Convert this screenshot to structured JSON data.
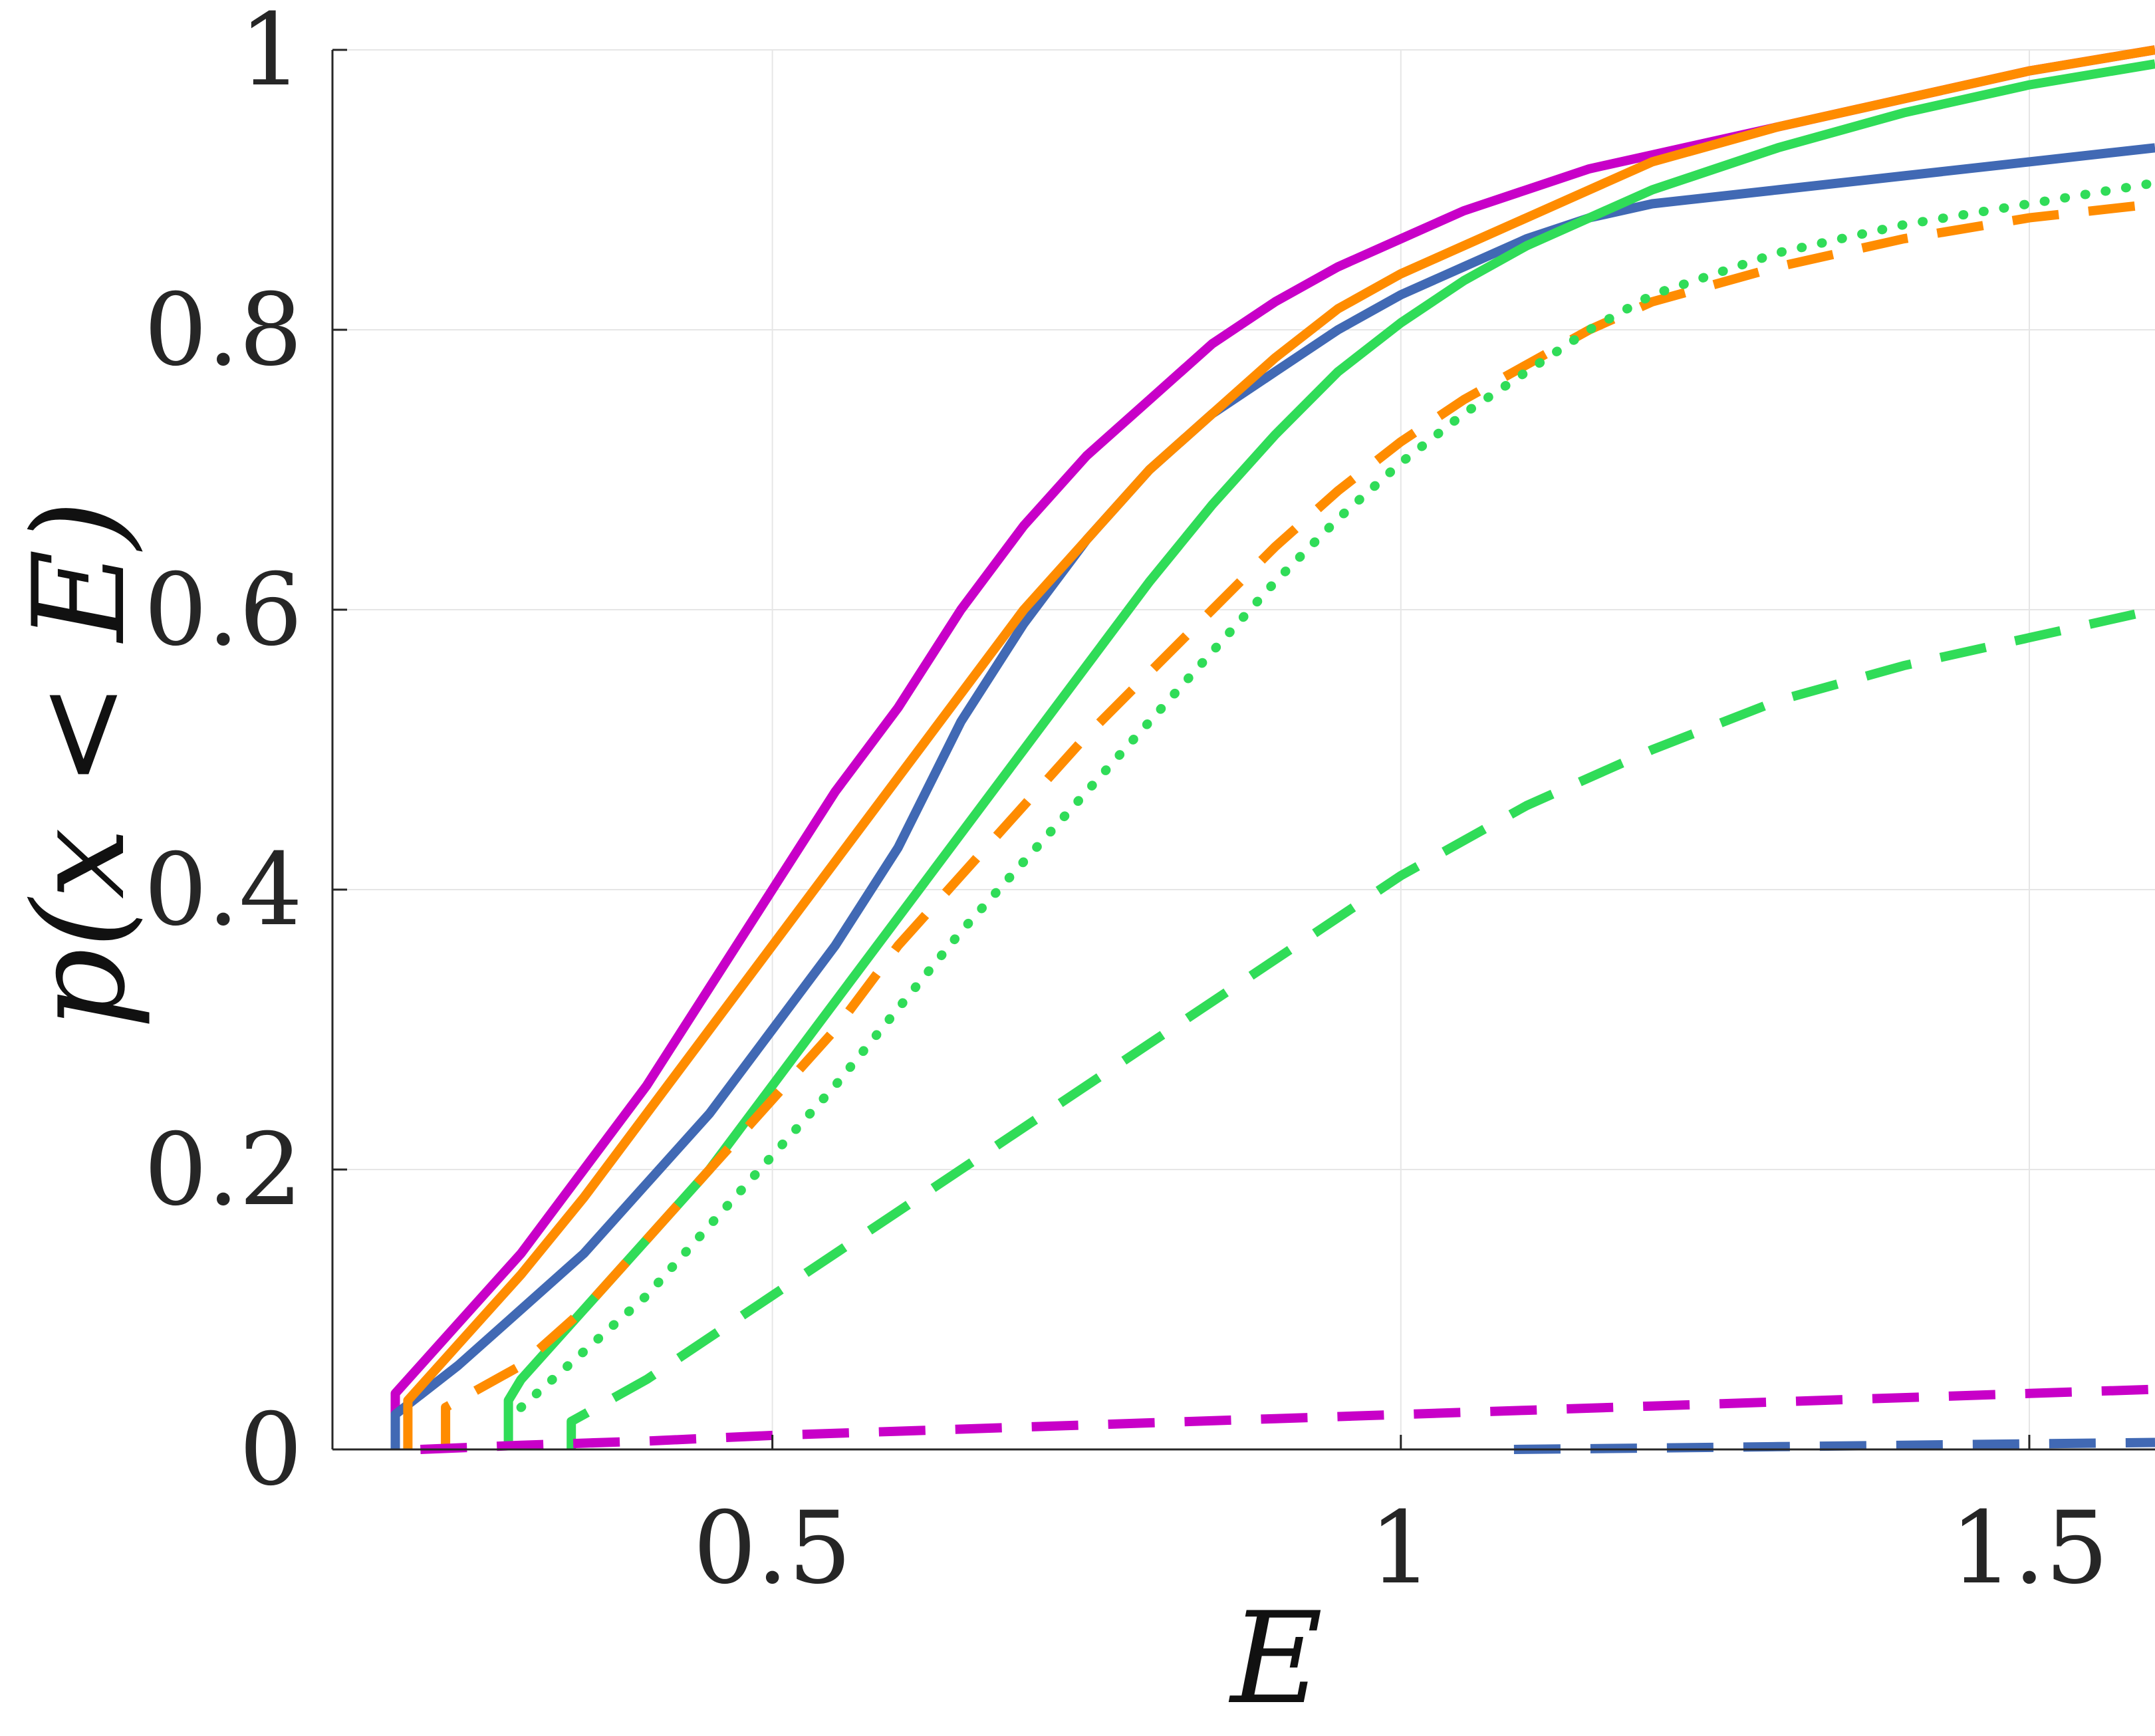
{
  "chart_data": {
    "type": "line",
    "xlabel": "E",
    "ylabel": "p(x < E)",
    "xlim": [
      0.15,
      1.6
    ],
    "ylim": [
      0,
      1
    ],
    "x_ticks": [
      {
        "value": 0.5,
        "label": "0.5"
      },
      {
        "value": 1,
        "label": "1"
      },
      {
        "value": 1.5,
        "label": "1.5"
      }
    ],
    "y_ticks": [
      {
        "value": 0,
        "label": "0"
      },
      {
        "value": 0.2,
        "label": "0.2"
      },
      {
        "value": 0.4,
        "label": "0.4"
      },
      {
        "value": 0.6,
        "label": "0.6"
      },
      {
        "value": 0.8,
        "label": "0.8"
      },
      {
        "value": 1,
        "label": "1"
      }
    ],
    "grid": true,
    "series": [
      {
        "color": "#c800c8",
        "style": "solid",
        "x": [
          0.2,
          0.2,
          0.25,
          0.3,
          0.35,
          0.4,
          0.45,
          0.5,
          0.55,
          0.6,
          0.65,
          0.7,
          0.75,
          0.8,
          0.85,
          0.9,
          0.95,
          1.0,
          1.05,
          1.1,
          1.15,
          1.2,
          1.3,
          1.4,
          1.5,
          1.6
        ],
        "y": [
          0.0,
          0.04,
          0.09,
          0.14,
          0.2,
          0.26,
          0.33,
          0.4,
          0.47,
          0.53,
          0.6,
          0.66,
          0.71,
          0.75,
          0.79,
          0.82,
          0.845,
          0.865,
          0.885,
          0.9,
          0.915,
          0.925,
          0.945,
          0.965,
          0.985,
          1.0
        ]
      },
      {
        "color": "#4169b4",
        "style": "solid",
        "x": [
          0.2,
          0.2,
          0.25,
          0.3,
          0.35,
          0.4,
          0.45,
          0.5,
          0.55,
          0.6,
          0.65,
          0.7,
          0.75,
          0.8,
          0.85,
          0.9,
          0.95,
          1.0,
          1.05,
          1.1,
          1.15,
          1.2,
          1.3,
          1.4,
          1.5,
          1.6
        ],
        "y": [
          0.0,
          0.025,
          0.06,
          0.1,
          0.14,
          0.19,
          0.24,
          0.3,
          0.36,
          0.43,
          0.52,
          0.59,
          0.65,
          0.7,
          0.74,
          0.77,
          0.8,
          0.825,
          0.845,
          0.865,
          0.88,
          0.89,
          0.9,
          0.91,
          0.92,
          0.93
        ]
      },
      {
        "color": "#ff8c00",
        "style": "solid",
        "x": [
          0.21,
          0.21,
          0.25,
          0.3,
          0.35,
          0.4,
          0.45,
          0.5,
          0.55,
          0.6,
          0.65,
          0.7,
          0.75,
          0.8,
          0.85,
          0.9,
          0.95,
          1.0,
          1.05,
          1.1,
          1.15,
          1.2,
          1.3,
          1.4,
          1.5,
          1.6
        ],
        "y": [
          0.0,
          0.035,
          0.075,
          0.125,
          0.18,
          0.24,
          0.3,
          0.36,
          0.42,
          0.48,
          0.54,
          0.6,
          0.65,
          0.7,
          0.74,
          0.78,
          0.815,
          0.84,
          0.86,
          0.88,
          0.9,
          0.92,
          0.945,
          0.965,
          0.985,
          1.0
        ]
      },
      {
        "color": "#30dc58",
        "style": "solid",
        "x": [
          0.29,
          0.29,
          0.3,
          0.35,
          0.4,
          0.45,
          0.5,
          0.55,
          0.6,
          0.65,
          0.7,
          0.75,
          0.8,
          0.85,
          0.9,
          0.95,
          1.0,
          1.05,
          1.1,
          1.15,
          1.2,
          1.3,
          1.4,
          1.5,
          1.6
        ],
        "y": [
          0.0,
          0.035,
          0.05,
          0.1,
          0.15,
          0.2,
          0.26,
          0.32,
          0.38,
          0.44,
          0.5,
          0.56,
          0.62,
          0.675,
          0.725,
          0.77,
          0.805,
          0.835,
          0.86,
          0.88,
          0.9,
          0.93,
          0.955,
          0.975,
          0.99
        ]
      },
      {
        "color": "#ff8c00",
        "style": "dashed",
        "x": [
          0.24,
          0.24,
          0.3,
          0.35,
          0.4,
          0.45,
          0.5,
          0.55,
          0.6,
          0.65,
          0.7,
          0.75,
          0.8,
          0.85,
          0.9,
          0.95,
          1.0,
          1.05,
          1.1,
          1.15,
          1.2,
          1.3,
          1.4,
          1.5,
          1.6
        ],
        "y": [
          0.0,
          0.03,
          0.06,
          0.1,
          0.15,
          0.2,
          0.25,
          0.3,
          0.36,
          0.41,
          0.46,
          0.51,
          0.555,
          0.6,
          0.645,
          0.685,
          0.72,
          0.75,
          0.775,
          0.8,
          0.82,
          0.845,
          0.865,
          0.88,
          0.89
        ]
      },
      {
        "color": "#30dc58",
        "style": "dotted",
        "x": [
          0.3,
          0.35,
          0.4,
          0.45,
          0.5,
          0.55,
          0.6,
          0.65,
          0.7,
          0.75,
          0.8,
          0.85,
          0.9,
          0.95,
          1.0,
          1.05,
          1.1,
          1.15,
          1.2,
          1.3,
          1.4,
          1.5,
          1.6
        ],
        "y": [
          0.03,
          0.07,
          0.11,
          0.16,
          0.21,
          0.26,
          0.315,
          0.37,
          0.42,
          0.47,
          0.52,
          0.57,
          0.62,
          0.665,
          0.705,
          0.74,
          0.77,
          0.8,
          0.825,
          0.855,
          0.875,
          0.89,
          0.905
        ]
      },
      {
        "color": "#30dc58",
        "style": "dashed",
        "x": [
          0.34,
          0.34,
          0.4,
          0.5,
          0.6,
          0.7,
          0.8,
          0.9,
          1.0,
          1.1,
          1.2,
          1.3,
          1.4,
          1.5,
          1.6
        ],
        "y": [
          0.0,
          0.02,
          0.05,
          0.11,
          0.17,
          0.23,
          0.29,
          0.35,
          0.41,
          0.46,
          0.5,
          0.535,
          0.56,
          0.58,
          0.6
        ]
      },
      {
        "color": "#c800c8",
        "style": "dashed",
        "x": [
          0.22,
          0.3,
          0.4,
          0.5,
          0.6,
          0.7,
          0.8,
          0.9,
          1.0,
          1.1,
          1.2,
          1.3,
          1.4,
          1.5,
          1.6
        ],
        "y": [
          0.0,
          0.003,
          0.006,
          0.01,
          0.013,
          0.016,
          0.019,
          0.022,
          0.025,
          0.028,
          0.031,
          0.034,
          0.037,
          0.04,
          0.043
        ]
      },
      {
        "color": "#4169b4",
        "style": "dashed",
        "x": [
          1.09,
          1.2,
          1.3,
          1.4,
          1.5,
          1.6
        ],
        "y": [
          0.0,
          0.001,
          0.002,
          0.003,
          0.004,
          0.005
        ]
      }
    ]
  }
}
